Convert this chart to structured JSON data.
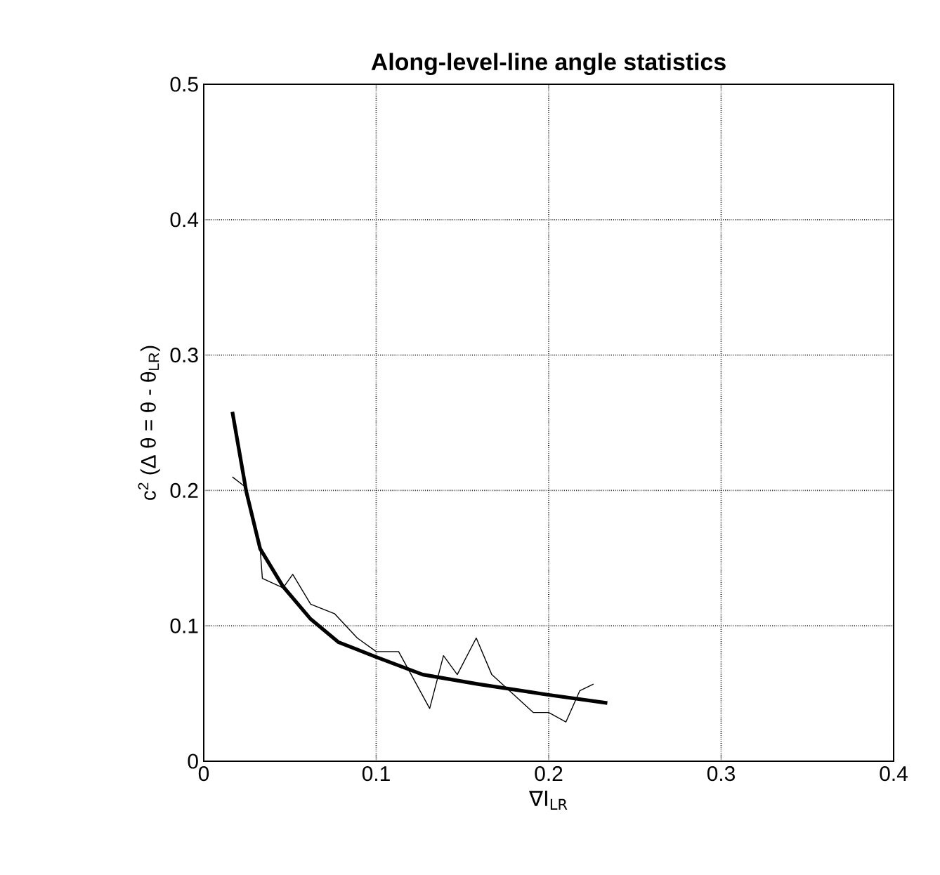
{
  "chart_data": {
    "type": "line",
    "title": "Along-level-line angle statistics",
    "xlabel": "∇I$_{LR}$",
    "ylabel": "c$^{2}$ (Δ θ = θ - θ$_{LR}$)",
    "xlim": [
      0,
      0.4
    ],
    "ylim": [
      0,
      0.5
    ],
    "xticks": [
      0,
      0.1,
      0.2,
      0.3,
      0.4
    ],
    "yticks": [
      0,
      0.1,
      0.2,
      0.3,
      0.4,
      0.5
    ],
    "grid": true,
    "series": [
      {
        "color": "#000000",
        "x": [
          0.0166,
          0.0247,
          0.0327,
          0.046,
          0.062,
          0.078,
          0.1,
          0.127,
          0.159,
          0.2,
          0.234
        ],
        "values": [
          0.258,
          0.199,
          0.157,
          0.129,
          0.105,
          0.088,
          0.077,
          0.064,
          0.057,
          0.049,
          0.043
        ]
      },
      {
        "color": "#000000",
        "x": [
          0.0166,
          0.0247,
          0.0327,
          0.034,
          0.046,
          0.0516,
          0.062,
          0.0758,
          0.089,
          0.1,
          0.113,
          0.119,
          0.131,
          0.139,
          0.147,
          0.158,
          0.167,
          0.191,
          0.2,
          0.21,
          0.218,
          0.226
        ],
        "values": [
          0.21,
          0.202,
          0.157,
          0.135,
          0.128,
          0.138,
          0.116,
          0.109,
          0.091,
          0.081,
          0.081,
          0.067,
          0.039,
          0.078,
          0.064,
          0.091,
          0.064,
          0.036,
          0.036,
          0.029,
          0.052,
          0.057
        ]
      }
    ]
  }
}
